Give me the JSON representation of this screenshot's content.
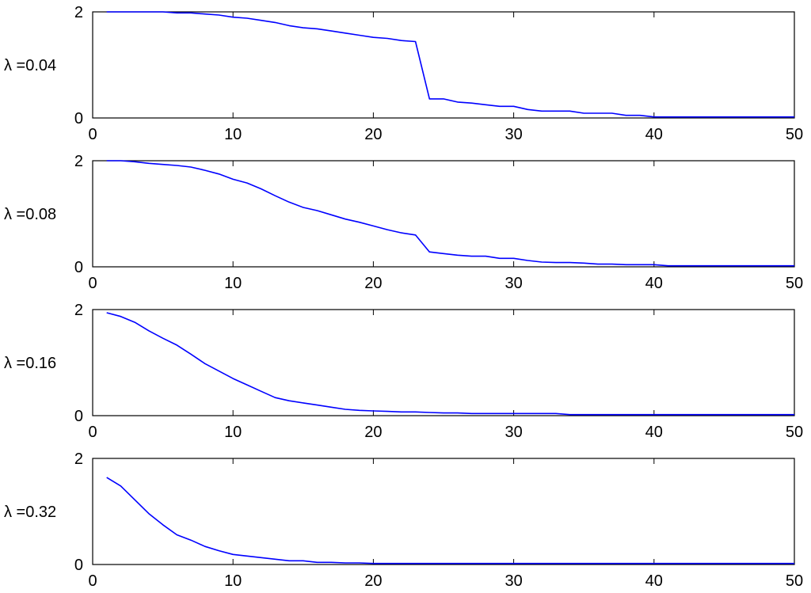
{
  "chart_data": [
    {
      "type": "line",
      "ylabel": "λ =0.04",
      "xlim": [
        0,
        50
      ],
      "ylim": [
        0,
        2
      ],
      "xticks": [
        0,
        10,
        20,
        30,
        40,
        50
      ],
      "yticks": [
        0,
        2
      ],
      "grid": false,
      "color": "#0000ff",
      "series": [
        {
          "x": [
            1,
            2,
            3,
            4,
            5,
            6,
            7,
            8,
            9,
            10,
            11,
            12,
            13,
            14,
            15,
            16,
            17,
            18,
            19,
            20,
            21,
            22,
            23,
            24,
            25,
            26,
            27,
            28,
            29,
            30,
            31,
            32,
            33,
            34,
            35,
            36,
            37,
            38,
            39,
            40,
            41,
            42,
            43,
            44,
            45,
            46,
            47,
            48,
            49,
            50
          ],
          "y": [
            2.0,
            2.0,
            2.0,
            2.0,
            2.0,
            1.98,
            1.98,
            1.96,
            1.94,
            1.9,
            1.88,
            1.84,
            1.8,
            1.74,
            1.7,
            1.68,
            1.64,
            1.6,
            1.56,
            1.52,
            1.5,
            1.46,
            1.44,
            0.36,
            0.36,
            0.3,
            0.28,
            0.25,
            0.22,
            0.22,
            0.16,
            0.13,
            0.13,
            0.13,
            0.09,
            0.09,
            0.09,
            0.05,
            0.05,
            0.02,
            0.02,
            0.02,
            0.02,
            0.02,
            0.02,
            0.02,
            0.02,
            0.02,
            0.02,
            0.02
          ]
        }
      ]
    },
    {
      "type": "line",
      "ylabel": "λ =0.08",
      "xlim": [
        0,
        50
      ],
      "ylim": [
        0,
        2
      ],
      "xticks": [
        0,
        10,
        20,
        30,
        40,
        50
      ],
      "yticks": [
        0,
        2
      ],
      "grid": false,
      "color": "#0000ff",
      "series": [
        {
          "x": [
            1,
            2,
            3,
            4,
            5,
            6,
            7,
            8,
            9,
            10,
            11,
            12,
            13,
            14,
            15,
            16,
            17,
            18,
            19,
            20,
            21,
            22,
            23,
            24,
            25,
            26,
            27,
            28,
            29,
            30,
            31,
            32,
            33,
            34,
            35,
            36,
            37,
            38,
            39,
            40,
            41,
            42,
            43,
            44,
            45,
            46,
            47,
            48,
            49,
            50
          ],
          "y": [
            2.0,
            2.0,
            1.98,
            1.95,
            1.93,
            1.91,
            1.88,
            1.82,
            1.75,
            1.65,
            1.58,
            1.47,
            1.34,
            1.22,
            1.12,
            1.06,
            0.98,
            0.9,
            0.84,
            0.77,
            0.7,
            0.64,
            0.6,
            0.28,
            0.25,
            0.22,
            0.2,
            0.2,
            0.16,
            0.16,
            0.12,
            0.09,
            0.08,
            0.08,
            0.07,
            0.05,
            0.05,
            0.04,
            0.04,
            0.04,
            0.02,
            0.02,
            0.02,
            0.02,
            0.02,
            0.02,
            0.02,
            0.02,
            0.02,
            0.02
          ]
        }
      ]
    },
    {
      "type": "line",
      "ylabel": "λ =0.16",
      "xlim": [
        0,
        50
      ],
      "ylim": [
        0,
        2
      ],
      "xticks": [
        0,
        10,
        20,
        30,
        40,
        50
      ],
      "yticks": [
        0,
        2
      ],
      "grid": false,
      "color": "#0000ff",
      "series": [
        {
          "x": [
            1,
            2,
            3,
            4,
            5,
            6,
            7,
            8,
            9,
            10,
            11,
            12,
            13,
            14,
            15,
            16,
            17,
            18,
            19,
            20,
            21,
            22,
            23,
            24,
            25,
            26,
            27,
            28,
            29,
            30,
            31,
            32,
            33,
            34,
            35,
            36,
            37,
            38,
            39,
            40,
            41,
            42,
            43,
            44,
            45,
            46,
            47,
            48,
            49,
            50
          ],
          "y": [
            1.94,
            1.87,
            1.76,
            1.6,
            1.46,
            1.33,
            1.16,
            0.98,
            0.84,
            0.7,
            0.58,
            0.46,
            0.34,
            0.28,
            0.24,
            0.2,
            0.16,
            0.12,
            0.1,
            0.09,
            0.08,
            0.07,
            0.07,
            0.06,
            0.05,
            0.05,
            0.04,
            0.04,
            0.04,
            0.04,
            0.04,
            0.04,
            0.04,
            0.02,
            0.02,
            0.02,
            0.02,
            0.02,
            0.02,
            0.02,
            0.02,
            0.02,
            0.02,
            0.02,
            0.02,
            0.02,
            0.02,
            0.02,
            0.02,
            0.02
          ]
        }
      ]
    },
    {
      "type": "line",
      "ylabel": "λ =0.32",
      "xlim": [
        0,
        50
      ],
      "ylim": [
        0,
        2
      ],
      "xticks": [
        0,
        10,
        20,
        30,
        40,
        50
      ],
      "yticks": [
        0,
        2
      ],
      "grid": false,
      "color": "#0000ff",
      "series": [
        {
          "x": [
            1,
            2,
            3,
            4,
            5,
            6,
            7,
            8,
            9,
            10,
            11,
            12,
            13,
            14,
            15,
            16,
            17,
            18,
            19,
            20,
            21,
            22,
            23,
            24,
            25,
            26,
            27,
            28,
            29,
            30,
            31,
            32,
            33,
            34,
            35,
            36,
            37,
            38,
            39,
            40,
            41,
            42,
            43,
            44,
            45,
            46,
            47,
            48,
            49,
            50
          ],
          "y": [
            1.64,
            1.48,
            1.22,
            0.96,
            0.75,
            0.56,
            0.46,
            0.34,
            0.26,
            0.19,
            0.16,
            0.13,
            0.1,
            0.07,
            0.07,
            0.04,
            0.04,
            0.03,
            0.03,
            0.02,
            0.02,
            0.02,
            0.02,
            0.02,
            0.02,
            0.02,
            0.02,
            0.02,
            0.02,
            0.02,
            0.02,
            0.02,
            0.02,
            0.02,
            0.02,
            0.02,
            0.02,
            0.02,
            0.02,
            0.02,
            0.02,
            0.02,
            0.02,
            0.02,
            0.02,
            0.02,
            0.02,
            0.02,
            0.02,
            0.02
          ]
        }
      ]
    }
  ]
}
